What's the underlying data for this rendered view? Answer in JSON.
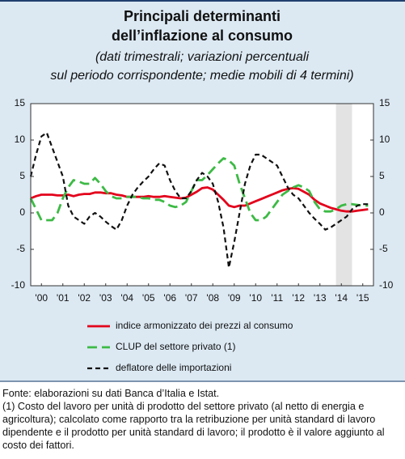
{
  "chart_data": {
    "type": "line",
    "title": [
      "Principali determinanti",
      "dell’inflazione al consumo"
    ],
    "subtitle": [
      "(dati trimestrali; variazioni percentuali",
      "sul periodo corrispondente; medie mobili di 4 termini)"
    ],
    "x": [
      2000,
      2000.25,
      2000.5,
      2000.75,
      2001,
      2001.25,
      2001.5,
      2001.75,
      2002,
      2002.25,
      2002.5,
      2002.75,
      2003,
      2003.25,
      2003.5,
      2003.75,
      2004,
      2004.25,
      2004.5,
      2004.75,
      2005,
      2005.25,
      2005.5,
      2005.75,
      2006,
      2006.25,
      2006.5,
      2006.75,
      2007,
      2007.25,
      2007.5,
      2007.75,
      2008,
      2008.25,
      2008.5,
      2008.75,
      2009,
      2009.25,
      2009.5,
      2009.75,
      2010,
      2010.25,
      2010.5,
      2010.75,
      2011,
      2011.25,
      2011.5,
      2011.75,
      2012,
      2012.25,
      2012.5,
      2012.75,
      2013,
      2013.25,
      2013.5,
      2013.75,
      2014,
      2014.25,
      2014.5,
      2014.75,
      2015,
      2015.25,
      2015.5,
      2015.75
    ],
    "series": [
      {
        "name": "indice armonizzato dei prezzi al consumo",
        "color": "#e3001b",
        "dash": "none",
        "values": [
          2.0,
          2.3,
          2.5,
          2.5,
          2.5,
          2.4,
          2.4,
          2.5,
          2.3,
          2.5,
          2.6,
          2.6,
          2.8,
          2.8,
          2.7,
          2.7,
          2.5,
          2.4,
          2.2,
          2.2,
          2.2,
          2.2,
          2.3,
          2.2,
          2.2,
          2.3,
          2.2,
          2.1,
          2.0,
          2.1,
          2.5,
          2.9,
          3.4,
          3.5,
          3.2,
          2.5,
          1.8,
          1.0,
          0.8,
          1.0,
          1.0,
          1.3,
          1.6,
          1.9,
          2.2,
          2.5,
          2.8,
          3.1,
          3.3,
          3.4,
          3.3,
          2.9,
          2.5,
          1.8,
          1.3,
          1.0,
          0.7,
          0.5,
          0.3,
          0.2,
          0.2,
          0.3,
          0.4,
          0.5
        ]
      },
      {
        "name": "CLUP del settore privato (1)",
        "color": "#3dba45",
        "dash": "12 6",
        "values": [
          2.0,
          0.5,
          -1.0,
          -1.0,
          -1.0,
          0.0,
          2.0,
          3.5,
          4.5,
          4.3,
          4.0,
          4.0,
          4.8,
          4.0,
          3.0,
          2.3,
          2.0,
          2.0,
          2.2,
          2.2,
          2.2,
          2.0,
          2.0,
          1.8,
          1.8,
          1.5,
          1.0,
          0.8,
          1.0,
          1.5,
          3.0,
          4.5,
          4.5,
          5.2,
          6.0,
          6.8,
          7.5,
          7.2,
          6.5,
          4.0,
          2.0,
          0.0,
          -1.0,
          -1.0,
          -0.5,
          0.5,
          1.5,
          2.5,
          3.0,
          3.5,
          3.8,
          3.5,
          3.0,
          1.5,
          0.5,
          0.2,
          0.2,
          0.5,
          1.0,
          1.2,
          1.2,
          1.1,
          1.0,
          1.0
        ]
      },
      {
        "name": "deflatore delle importazioni",
        "color": "#111111",
        "dash": "6 4",
        "values": [
          5.0,
          8.0,
          10.5,
          11.0,
          9.0,
          7.0,
          5.0,
          1.0,
          -0.5,
          -1.0,
          -1.5,
          -0.5,
          0.0,
          -0.5,
          -1.2,
          -1.8,
          -2.3,
          -1.0,
          1.0,
          2.5,
          3.5,
          4.3,
          5.0,
          6.0,
          6.8,
          6.5,
          4.5,
          3.0,
          2.0,
          2.0,
          3.0,
          4.5,
          5.5,
          5.0,
          4.0,
          1.5,
          -2.0,
          -7.5,
          -4.0,
          0.0,
          4.0,
          6.5,
          8.0,
          8.0,
          7.5,
          7.0,
          6.5,
          5.0,
          3.5,
          2.5,
          2.0,
          1.0,
          0.0,
          -0.8,
          -1.5,
          -2.3,
          -2.0,
          -1.5,
          -1.0,
          -0.5,
          0.5,
          1.0,
          1.2,
          1.2
        ]
      }
    ],
    "xlim": [
      2000,
      2016
    ],
    "xticks": [
      {
        "value": 2000.5,
        "label": "'00"
      },
      {
        "value": 2001.5,
        "label": "'01"
      },
      {
        "value": 2002.5,
        "label": "'02"
      },
      {
        "value": 2003.5,
        "label": "'03"
      },
      {
        "value": 2004.5,
        "label": "'04"
      },
      {
        "value": 2005.5,
        "label": "'05"
      },
      {
        "value": 2006.5,
        "label": "'06"
      },
      {
        "value": 2007.5,
        "label": "'07"
      },
      {
        "value": 2008.5,
        "label": "'08"
      },
      {
        "value": 2009.5,
        "label": "'09"
      },
      {
        "value": 2010.5,
        "label": "'10"
      },
      {
        "value": 2011.5,
        "label": "'11"
      },
      {
        "value": 2012.5,
        "label": "'12"
      },
      {
        "value": 2013.5,
        "label": "'13"
      },
      {
        "value": 2014.5,
        "label": "'14"
      },
      {
        "value": 2015.5,
        "label": "'15"
      }
    ],
    "ylim": [
      -10,
      15
    ],
    "yticks": [
      15,
      10,
      5,
      0,
      -5,
      -10
    ],
    "y2lim": [
      -10,
      15
    ],
    "y2ticks": [
      15,
      10,
      5,
      0,
      -5,
      -10
    ],
    "shaded_x": [
      2014.25,
      2015
    ],
    "grid": false,
    "source": "Fonte: elaborazioni su dati Banca d’Italia e Istat.",
    "note": "(1) Costo del lavoro per unità di prodotto del settore privato (al netto di energia e agricoltura); calcolato come rapporto tra la retribuzione per unità standard di lavoro dipendente e il prodotto per unità standard di lavoro; il prodotto è il valore aggiunto al costo dei fattori."
  }
}
